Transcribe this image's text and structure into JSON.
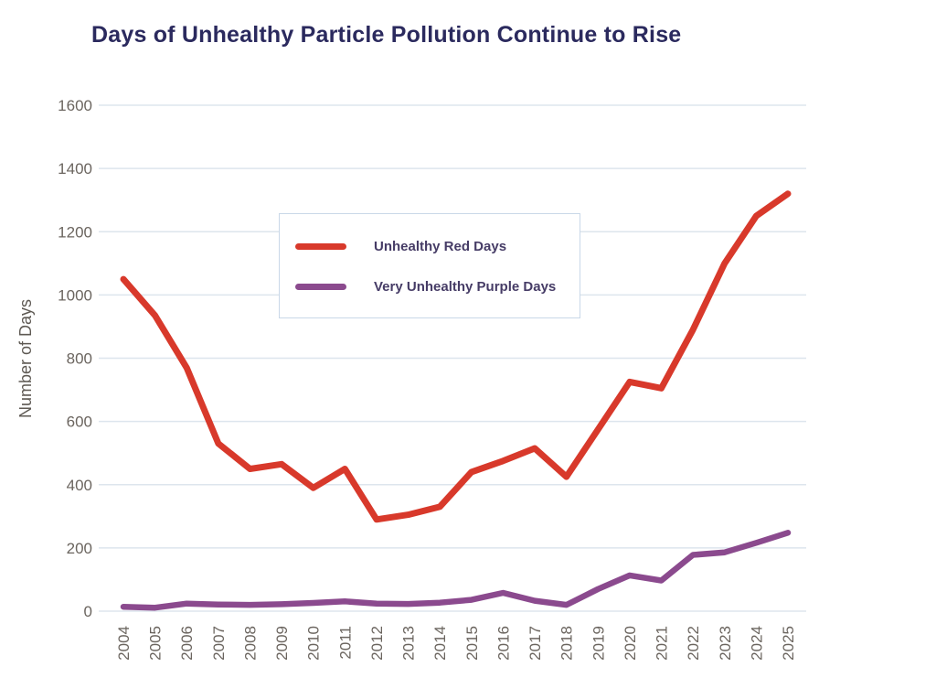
{
  "chart_data": {
    "type": "line",
    "title": "Days of Unhealthy Particle Pollution Continue to Rise",
    "xlabel": "",
    "ylabel": "Number of Days",
    "x": [
      "2004",
      "2005",
      "2006",
      "2007",
      "2008",
      "2009",
      "2010",
      "2011",
      "2012",
      "2013",
      "2014",
      "2015",
      "2016",
      "2017",
      "2018",
      "2019",
      "2020",
      "2021",
      "2022",
      "2023",
      "2024",
      "2025"
    ],
    "series": [
      {
        "name": "Unhealthy Red Days",
        "color": "#d8392b",
        "values": [
          1050,
          935,
          770,
          530,
          450,
          465,
          390,
          450,
          290,
          305,
          330,
          440,
          475,
          515,
          425,
          575,
          725,
          705,
          890,
          1100,
          1250,
          1320
        ]
      },
      {
        "name": "Very Unhealthy Purple Days",
        "color": "#8b4a8e",
        "values": [
          14,
          11,
          24,
          21,
          20,
          22,
          26,
          31,
          24,
          23,
          27,
          36,
          58,
          33,
          20,
          70,
          113,
          97,
          178,
          186,
          216,
          248
        ]
      }
    ],
    "ylim": [
      0,
      1600
    ],
    "ytick_step": 200,
    "yticks": [
      0,
      200,
      400,
      600,
      800,
      1000,
      1200,
      1400,
      1600
    ],
    "grid": true,
    "legend_position": "upper-left-inside"
  },
  "style": {
    "title_color": "#2b2a5e",
    "tick_label_color": "#6b655f",
    "axis_label_color": "#5e5953",
    "gridline_color": "#dde5ed",
    "legend_border_color": "#c9d8e8",
    "legend_text_color": "#463c66",
    "background_color": "#ffffff"
  }
}
